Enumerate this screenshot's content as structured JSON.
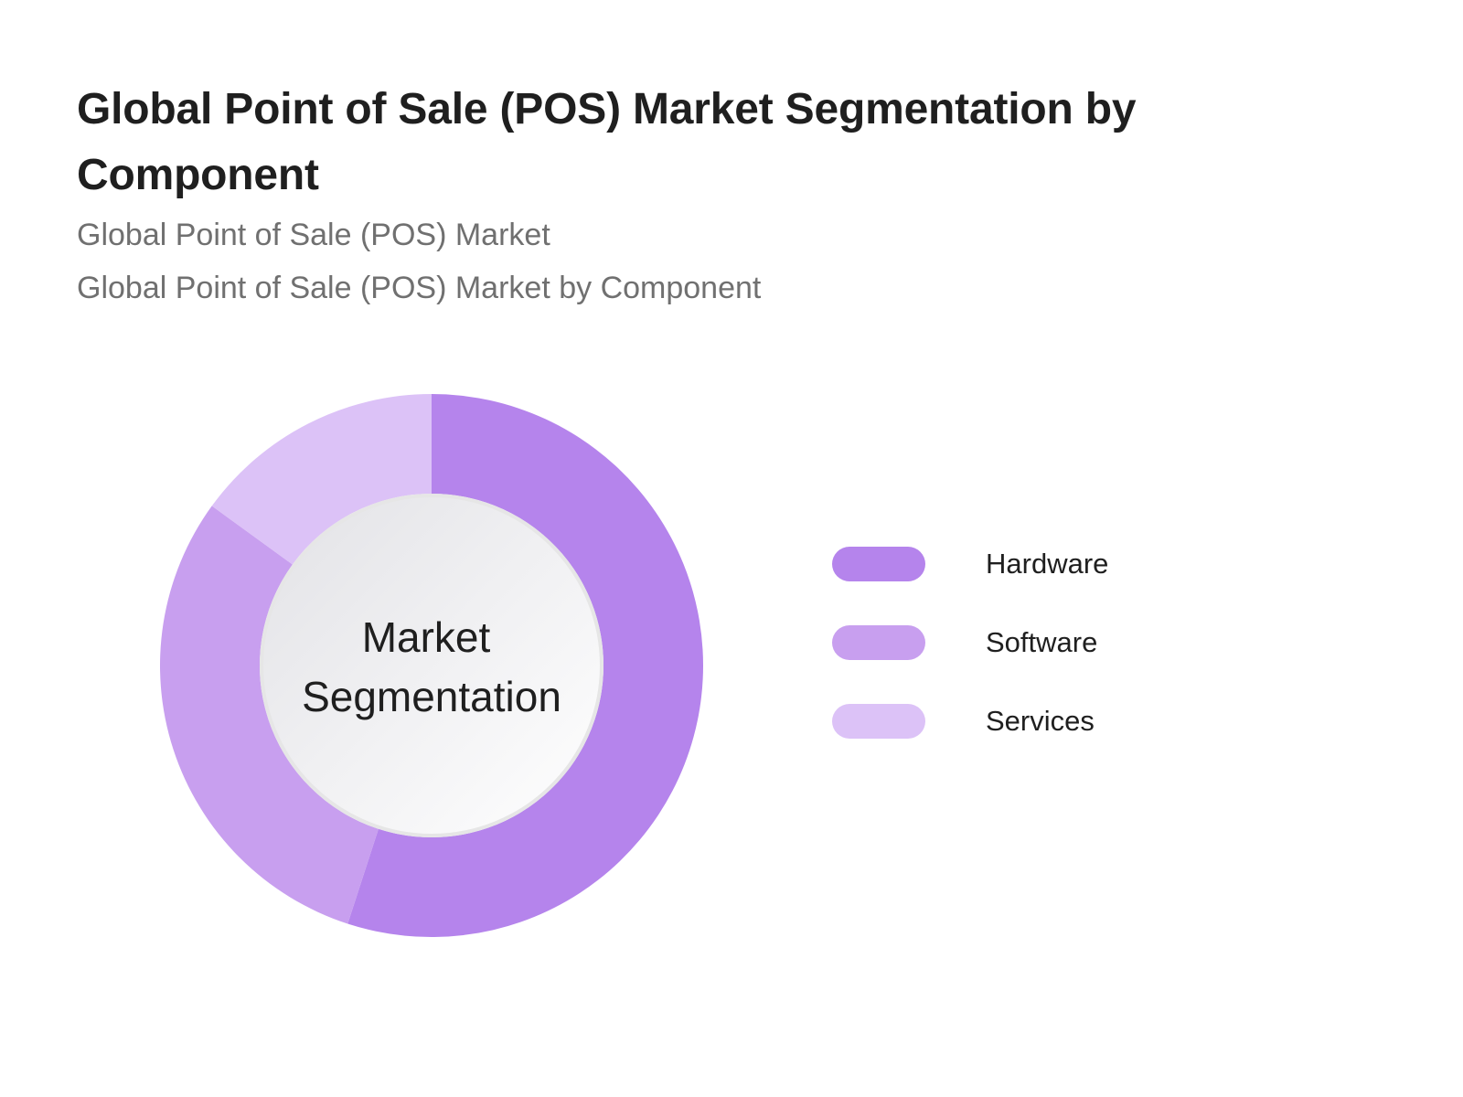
{
  "header": {
    "title": "Global Point of Sale (POS) Market Segmentation by Component",
    "subtitle_1": "Global Point of Sale (POS) Market",
    "subtitle_2": "Global Point of Sale (POS) Market by Component"
  },
  "chart_data": {
    "type": "pie",
    "donut": true,
    "center_label": [
      "Market",
      "Segmentation"
    ],
    "categories": [
      "Hardware",
      "Software",
      "Services"
    ],
    "values": [
      55,
      30,
      15
    ],
    "colors": [
      "#b584ec",
      "#c89fef",
      "#dcc2f7"
    ],
    "legend_placement": "right"
  }
}
